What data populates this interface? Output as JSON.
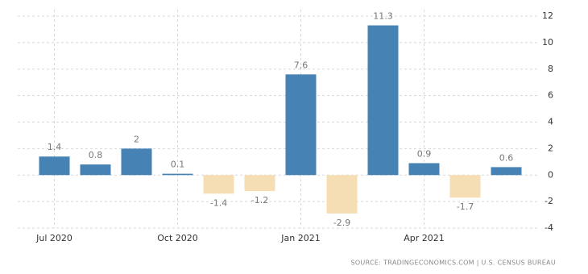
{
  "chart_data": {
    "type": "bar",
    "categories": [
      "Jul 2020",
      null,
      null,
      "Oct 2020",
      null,
      null,
      "Jan 2021",
      null,
      null,
      "Apr 2021",
      null,
      null
    ],
    "values": [
      1.4,
      0.8,
      2,
      0.1,
      -1.4,
      -1.2,
      7.6,
      -2.9,
      11.3,
      0.9,
      -1.7,
      0.6
    ],
    "color": "#4682b4",
    "negative_color": "#f5deb3",
    "ylim": [
      -4,
      12
    ],
    "yticks": [
      -4,
      -2,
      0,
      2,
      4,
      6,
      8,
      10,
      12
    ],
    "grid": true,
    "source": "SOURCE: TRADINGECONOMICS.COM | U.S. CENSUS BUREAU"
  }
}
